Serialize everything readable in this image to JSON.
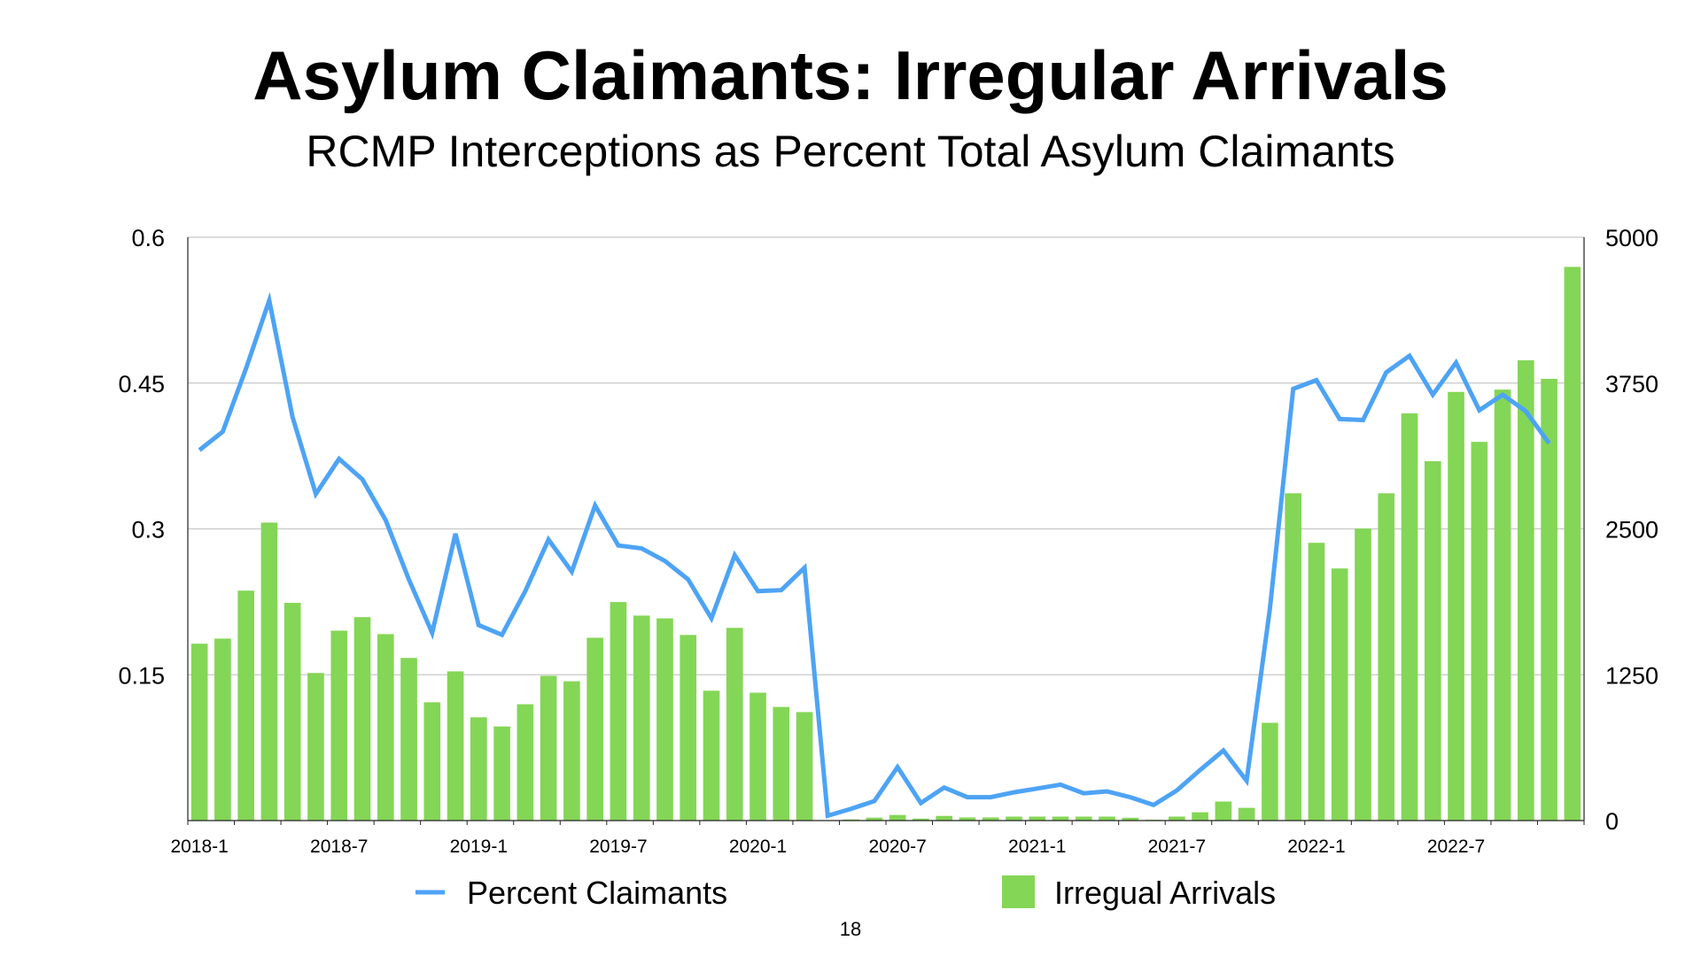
{
  "chart_data": {
    "type": "bar",
    "title": "Asylum Claimants: Irregular Arrivals",
    "subtitle": "RCMP Interceptions as Percent Total Asylum Claimants",
    "x_start": "2018-1",
    "x_tick_labels": [
      "2018-1",
      "2018-7",
      "2019-1",
      "2019-7",
      "2020-1",
      "2020-7",
      "2021-1",
      "2021-7",
      "2022-1",
      "2022-7"
    ],
    "y_left": {
      "ticks": [
        "0.6",
        "0.45",
        "0.3",
        "0.15"
      ],
      "range": [
        0,
        0.6
      ]
    },
    "y_right": {
      "ticks": [
        "5000",
        "3750",
        "2500",
        "1250",
        "0"
      ],
      "range": [
        0,
        5000
      ]
    },
    "grid": true,
    "legend_position": "bottom",
    "series": [
      {
        "name": "Percent Claimants",
        "type": "line",
        "axis": "left",
        "color": "#4da3f5",
        "values": [
          0.381,
          0.4,
          0.465,
          0.535,
          0.415,
          0.336,
          0.372,
          0.351,
          0.309,
          0.248,
          0.193,
          0.295,
          0.201,
          0.191,
          0.236,
          0.289,
          0.256,
          0.324,
          0.283,
          0.28,
          0.267,
          0.248,
          0.208,
          0.273,
          0.236,
          0.237,
          0.26,
          0.005,
          0.012,
          0.02,
          0.055,
          0.018,
          0.034,
          0.024,
          0.024,
          0.029,
          0.033,
          0.037,
          0.028,
          0.03,
          0.024,
          0.016,
          0.031,
          0.052,
          0.072,
          0.041,
          0.218,
          0.444,
          0.453,
          0.413,
          0.412,
          0.461,
          0.478,
          0.438,
          0.471,
          0.422,
          0.438,
          0.421,
          0.388,
          null
        ]
      },
      {
        "name": "Irregual Arrivals",
        "type": "bar",
        "axis": "right",
        "color": "#84d656",
        "values": [
          1516,
          1560,
          1971,
          2554,
          1866,
          1265,
          1628,
          1744,
          1598,
          1394,
          1014,
          1279,
          885,
          807,
          997,
          1241,
          1194,
          1567,
          1873,
          1757,
          1733,
          1591,
          1113,
          1652,
          1096,
          974,
          930,
          0,
          10,
          25,
          48,
          17,
          40,
          27,
          27,
          34,
          34,
          34,
          34,
          34,
          24,
          7,
          34,
          71,
          163,
          109,
          838,
          2805,
          2381,
          2161,
          2503,
          2805,
          3490,
          3080,
          3674,
          3246,
          3694,
          3945,
          3786,
          4746
        ]
      }
    ]
  },
  "page_number": "18"
}
